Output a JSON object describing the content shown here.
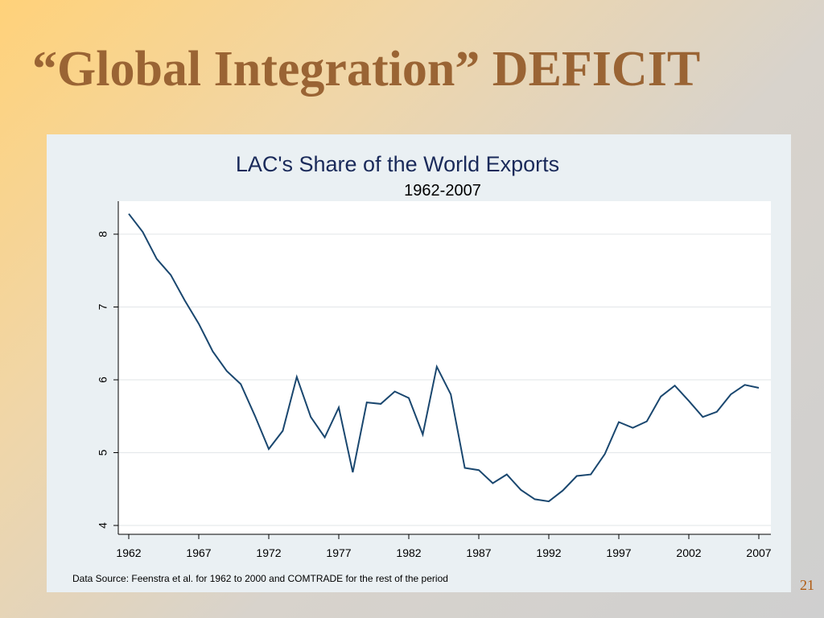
{
  "slide": {
    "title": "“Global Integration”  DEFICIT",
    "title_color": "#9a6434",
    "page_number": "21",
    "page_number_color": "#b05a10"
  },
  "chart_data": {
    "type": "line",
    "title": "LAC's Share of the World Exports",
    "subtitle": "1962-2007",
    "xlabel": "",
    "ylabel": "",
    "x": [
      1962,
      1963,
      1964,
      1965,
      1966,
      1967,
      1968,
      1969,
      1970,
      1971,
      1972,
      1973,
      1974,
      1975,
      1976,
      1977,
      1978,
      1979,
      1980,
      1981,
      1982,
      1983,
      1984,
      1985,
      1986,
      1987,
      1988,
      1989,
      1990,
      1991,
      1992,
      1993,
      1994,
      1995,
      1996,
      1997,
      1998,
      1999,
      2000,
      2001,
      2002,
      2003,
      2004,
      2005,
      2006,
      2007
    ],
    "series": [
      {
        "values": [
          8.28,
          8.03,
          7.66,
          7.44,
          7.09,
          6.77,
          6.39,
          6.12,
          5.94,
          5.51,
          5.05,
          5.3,
          6.04,
          5.49,
          5.21,
          5.62,
          4.73,
          5.69,
          5.67,
          5.84,
          5.75,
          5.25,
          6.18,
          5.8,
          4.79,
          4.76,
          4.58,
          4.7,
          4.49,
          4.36,
          4.33,
          4.48,
          4.68,
          4.7,
          4.98,
          5.42,
          5.34,
          5.43,
          5.77,
          5.92,
          5.71,
          5.49,
          5.56,
          5.8,
          5.93,
          5.89
        ],
        "color": "#1a476f"
      }
    ],
    "x_ticks": [
      "1962",
      "1967",
      "1972",
      "1977",
      "1982",
      "1987",
      "1992",
      "1997",
      "2002",
      "2007"
    ],
    "y_ticks": [
      "4",
      "5",
      "6",
      "7",
      "8"
    ],
    "xlim": [
      1962,
      2007
    ],
    "ylim": [
      4,
      8.4
    ],
    "grid": true,
    "legend": "none"
  },
  "source_note": "Data Source: Feenstra et al. for 1962 to 2000 and COMTRADE for the rest of the period"
}
